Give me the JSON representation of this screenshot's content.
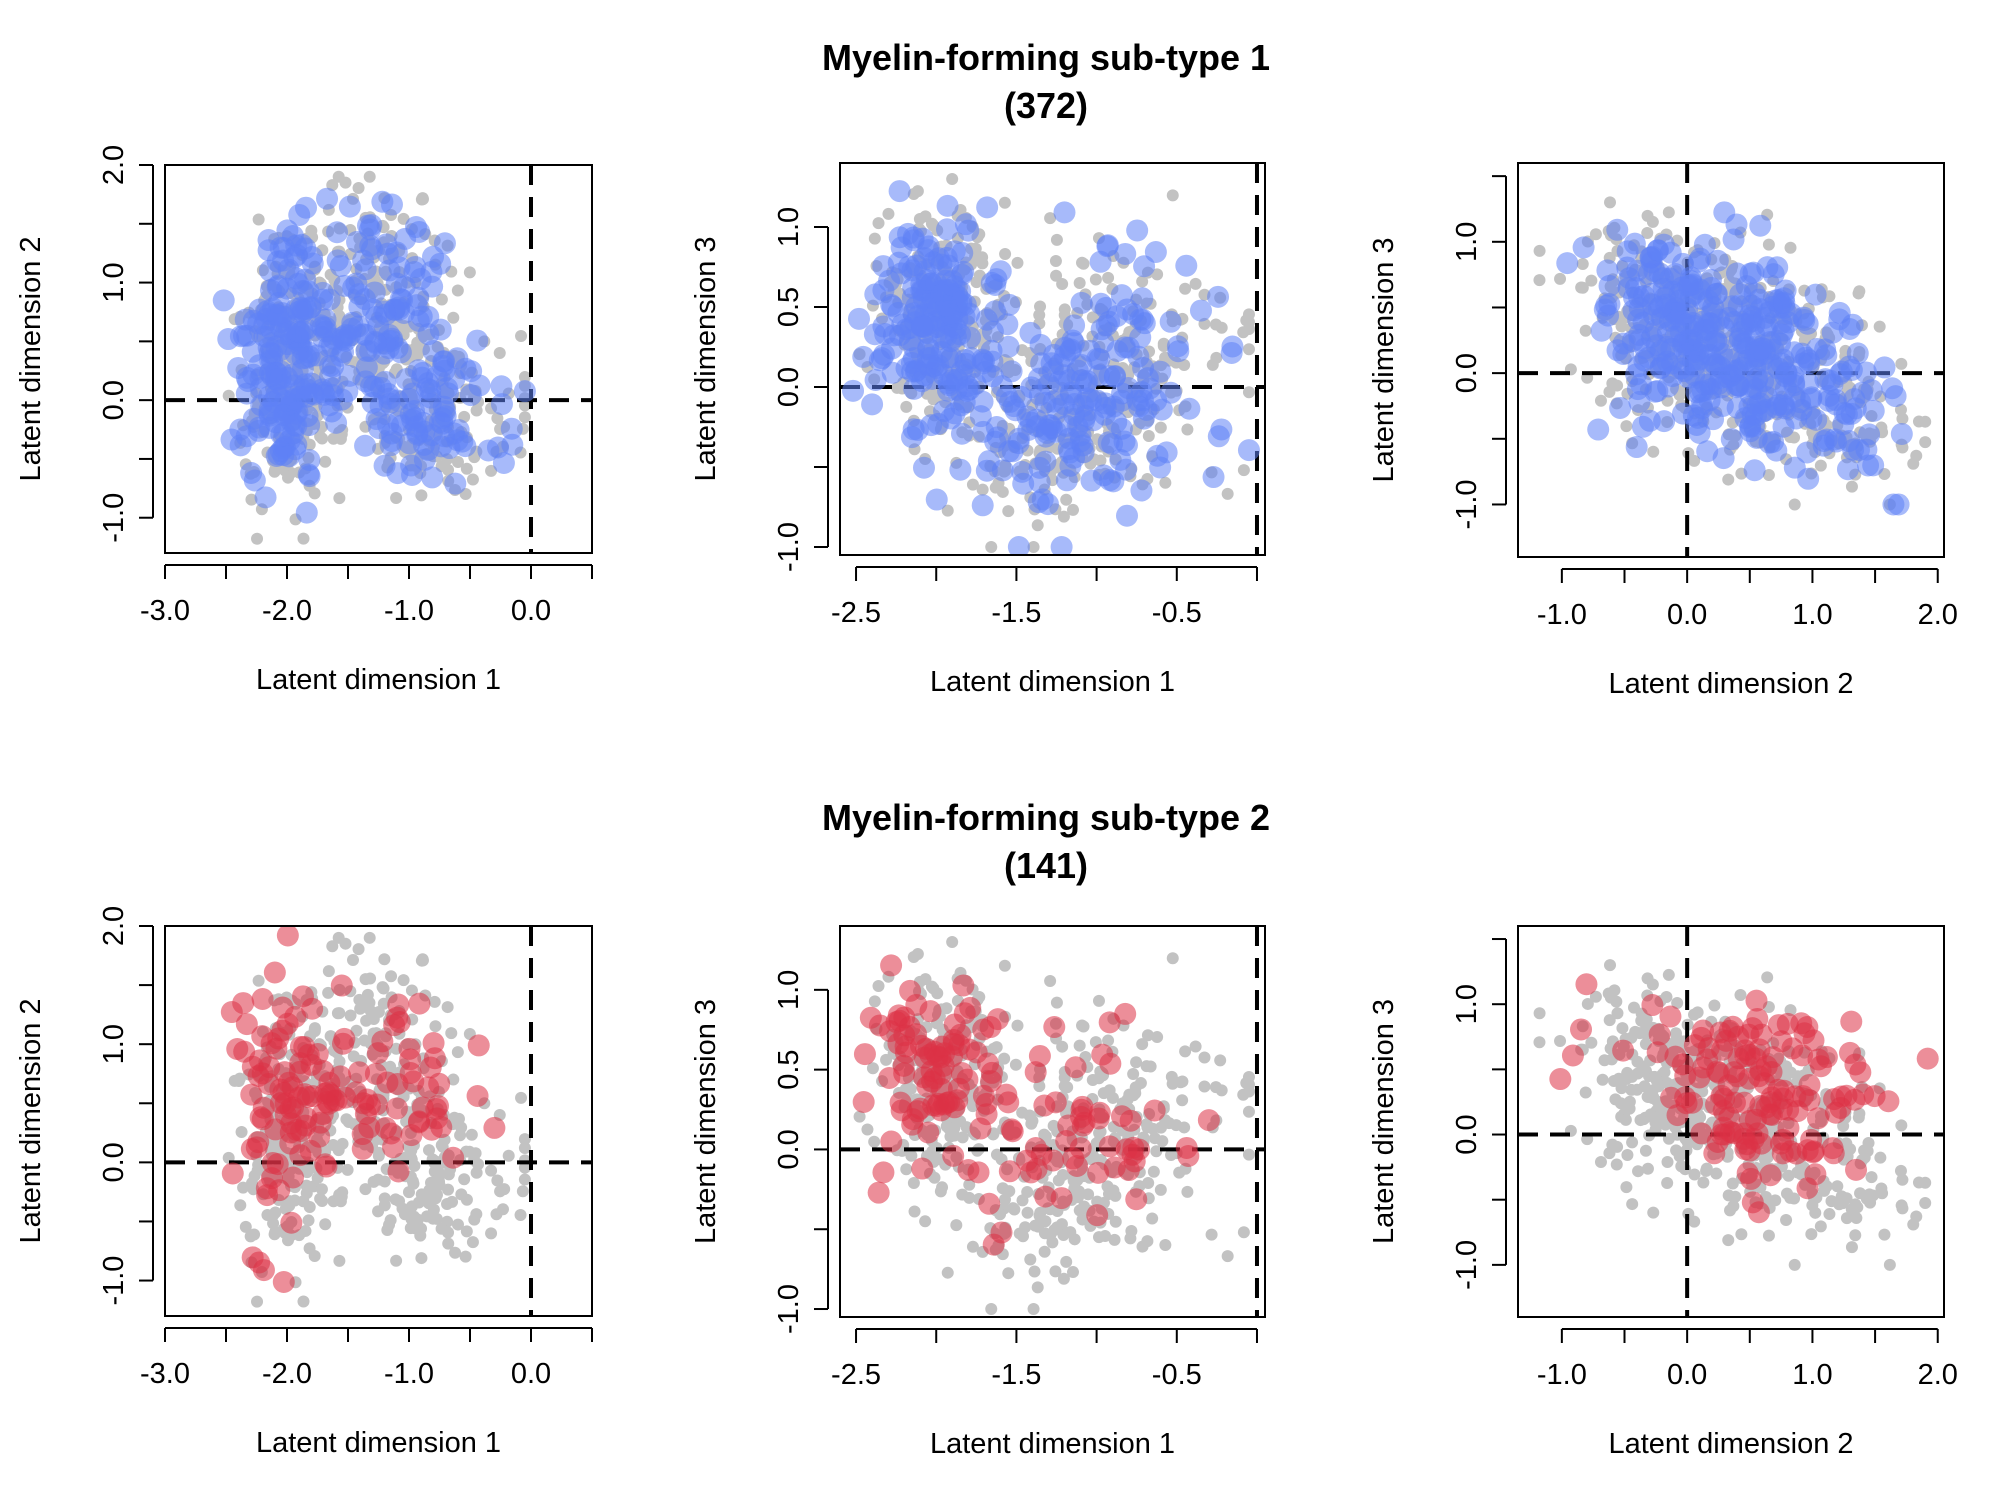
{
  "figure": {
    "background": "#ffffff",
    "colors": {
      "subtype1": "#5f82f5",
      "subtype2": "#dc3246",
      "background_points": "#c2c2c2",
      "reference_line": "#000000"
    },
    "rows": [
      {
        "title_line1": "Myelin-forming sub-type 1",
        "title_line2": "(372)"
      },
      {
        "title_line1": "Myelin-forming sub-type 2",
        "title_line2": "(141)"
      }
    ]
  },
  "chart_data": [
    {
      "type": "scatter",
      "row": 0,
      "col": 0,
      "highlight": "subtype1",
      "title": "Myelin-forming sub-type 1 (372)",
      "xlabel": "Latent dimension 1",
      "ylabel": "Latent dimension 2",
      "xlim": [
        -3.0,
        0.5
      ],
      "ylim": [
        -1.3,
        2.0
      ],
      "x_ticks": [
        -3.0,
        -2.5,
        -2.0,
        -1.5,
        -1.0,
        -0.5,
        0.0,
        0.5
      ],
      "x_tick_labels": [
        "-3.0",
        "",
        "-2.0",
        "",
        "-1.0",
        "",
        "0.0",
        ""
      ],
      "y_ticks": [
        -1.0,
        -0.5,
        0.0,
        0.5,
        1.0,
        1.5,
        2.0
      ],
      "y_tick_labels": [
        "-1.0",
        "",
        "0.0",
        "",
        "1.0",
        "",
        "2.0"
      ],
      "reference_lines": {
        "vertical_x": 0.0,
        "horizontal_y": 0.0,
        "style": "dashed"
      },
      "grid": false,
      "n_highlighted": 372,
      "point_cloud_extent": {
        "x": [
          -2.5,
          -0.05
        ],
        "y": [
          -1.25,
          1.9
        ]
      }
    },
    {
      "type": "scatter",
      "row": 0,
      "col": 1,
      "highlight": "subtype1",
      "xlabel": "Latent dimension 1",
      "ylabel": "Latent dimension 3",
      "xlim": [
        -2.6,
        0.05
      ],
      "ylim": [
        -1.05,
        1.4
      ],
      "x_ticks": [
        -2.5,
        -2.0,
        -1.5,
        -1.0,
        -0.5,
        0.0
      ],
      "x_tick_labels": [
        "-2.5",
        "",
        "-1.5",
        "",
        "-0.5",
        ""
      ],
      "y_ticks": [
        -1.0,
        -0.5,
        0.0,
        0.5,
        1.0
      ],
      "y_tick_labels": [
        "-1.0",
        "",
        "0.0",
        "0.5",
        "1.0"
      ],
      "reference_lines": {
        "vertical_x": 0.0,
        "horizontal_y": 0.0,
        "style": "dashed"
      },
      "grid": false,
      "n_highlighted": 372,
      "point_cloud_extent": {
        "x": [
          -2.55,
          -0.1
        ],
        "y": [
          -1.0,
          1.3
        ]
      }
    },
    {
      "type": "scatter",
      "row": 0,
      "col": 2,
      "highlight": "subtype1",
      "xlabel": "Latent dimension 2",
      "ylabel": "Latent dimension 3",
      "xlim": [
        -1.35,
        2.05
      ],
      "ylim": [
        -1.4,
        1.6
      ],
      "x_ticks": [
        -1.0,
        -0.5,
        0.0,
        0.5,
        1.0,
        1.5,
        2.0
      ],
      "x_tick_labels": [
        "-1.0",
        "",
        "0.0",
        "",
        "1.0",
        "",
        "2.0"
      ],
      "y_ticks": [
        -1.0,
        -0.5,
        0.0,
        0.5,
        1.0,
        1.5
      ],
      "y_tick_labels": [
        "-1.0",
        "",
        "0.0",
        "",
        "1.0",
        ""
      ],
      "reference_lines": {
        "vertical_x": 0.0,
        "horizontal_y": 0.0,
        "style": "dashed"
      },
      "grid": false,
      "n_highlighted": 372,
      "point_cloud_extent": {
        "x": [
          -1.25,
          1.9
        ],
        "y": [
          -1.0,
          1.3
        ]
      }
    },
    {
      "type": "scatter",
      "row": 1,
      "col": 0,
      "highlight": "subtype2",
      "title": "Myelin-forming sub-type 2 (141)",
      "xlabel": "Latent dimension 1",
      "ylabel": "Latent dimension 2",
      "xlim": [
        -3.0,
        0.5
      ],
      "ylim": [
        -1.3,
        2.0
      ],
      "x_ticks": [
        -3.0,
        -2.5,
        -2.0,
        -1.5,
        -1.0,
        -0.5,
        0.0,
        0.5
      ],
      "x_tick_labels": [
        "-3.0",
        "",
        "-2.0",
        "",
        "-1.0",
        "",
        "0.0",
        ""
      ],
      "y_ticks": [
        -1.0,
        -0.5,
        0.0,
        0.5,
        1.0,
        1.5,
        2.0
      ],
      "y_tick_labels": [
        "-1.0",
        "",
        "0.0",
        "",
        "1.0",
        "",
        "2.0"
      ],
      "reference_lines": {
        "vertical_x": 0.0,
        "horizontal_y": 0.0,
        "style": "dashed"
      },
      "grid": false,
      "n_highlighted": 141,
      "point_cloud_extent": {
        "x": [
          -2.5,
          -0.3
        ],
        "y": [
          -1.2,
          1.95
        ]
      }
    },
    {
      "type": "scatter",
      "row": 1,
      "col": 1,
      "highlight": "subtype2",
      "xlabel": "Latent dimension 1",
      "ylabel": "Latent dimension 3",
      "xlim": [
        -2.6,
        0.05
      ],
      "ylim": [
        -1.05,
        1.4
      ],
      "x_ticks": [
        -2.5,
        -2.0,
        -1.5,
        -1.0,
        -0.5,
        0.0
      ],
      "x_tick_labels": [
        "-2.5",
        "",
        "-1.5",
        "",
        "-0.5",
        ""
      ],
      "y_ticks": [
        -1.0,
        -0.5,
        0.0,
        0.5,
        1.0
      ],
      "y_tick_labels": [
        "-1.0",
        "",
        "0.0",
        "0.5",
        "1.0"
      ],
      "reference_lines": {
        "vertical_x": 0.0,
        "horizontal_y": 0.0,
        "style": "dashed"
      },
      "grid": false,
      "n_highlighted": 141,
      "point_cloud_extent": {
        "x": [
          -2.55,
          -0.35
        ],
        "y": [
          -0.75,
          1.2
        ]
      }
    },
    {
      "type": "scatter",
      "row": 1,
      "col": 2,
      "highlight": "subtype2",
      "xlabel": "Latent dimension 2",
      "ylabel": "Latent dimension 3",
      "xlim": [
        -1.35,
        2.05
      ],
      "ylim": [
        -1.4,
        1.6
      ],
      "x_ticks": [
        -1.0,
        -0.5,
        0.0,
        0.5,
        1.0,
        1.5,
        2.0
      ],
      "x_tick_labels": [
        "-1.0",
        "",
        "0.0",
        "",
        "1.0",
        "",
        "2.0"
      ],
      "y_ticks": [
        -1.0,
        -0.5,
        0.0,
        0.5,
        1.0,
        1.5
      ],
      "y_tick_labels": [
        "-1.0",
        "",
        "0.0",
        "",
        "1.0",
        ""
      ],
      "reference_lines": {
        "vertical_x": 0.0,
        "horizontal_y": 0.0,
        "style": "dashed"
      },
      "grid": false,
      "n_highlighted": 141,
      "point_cloud_extent": {
        "x": [
          -1.2,
          1.95
        ],
        "y": [
          -0.8,
          1.2
        ]
      }
    }
  ]
}
